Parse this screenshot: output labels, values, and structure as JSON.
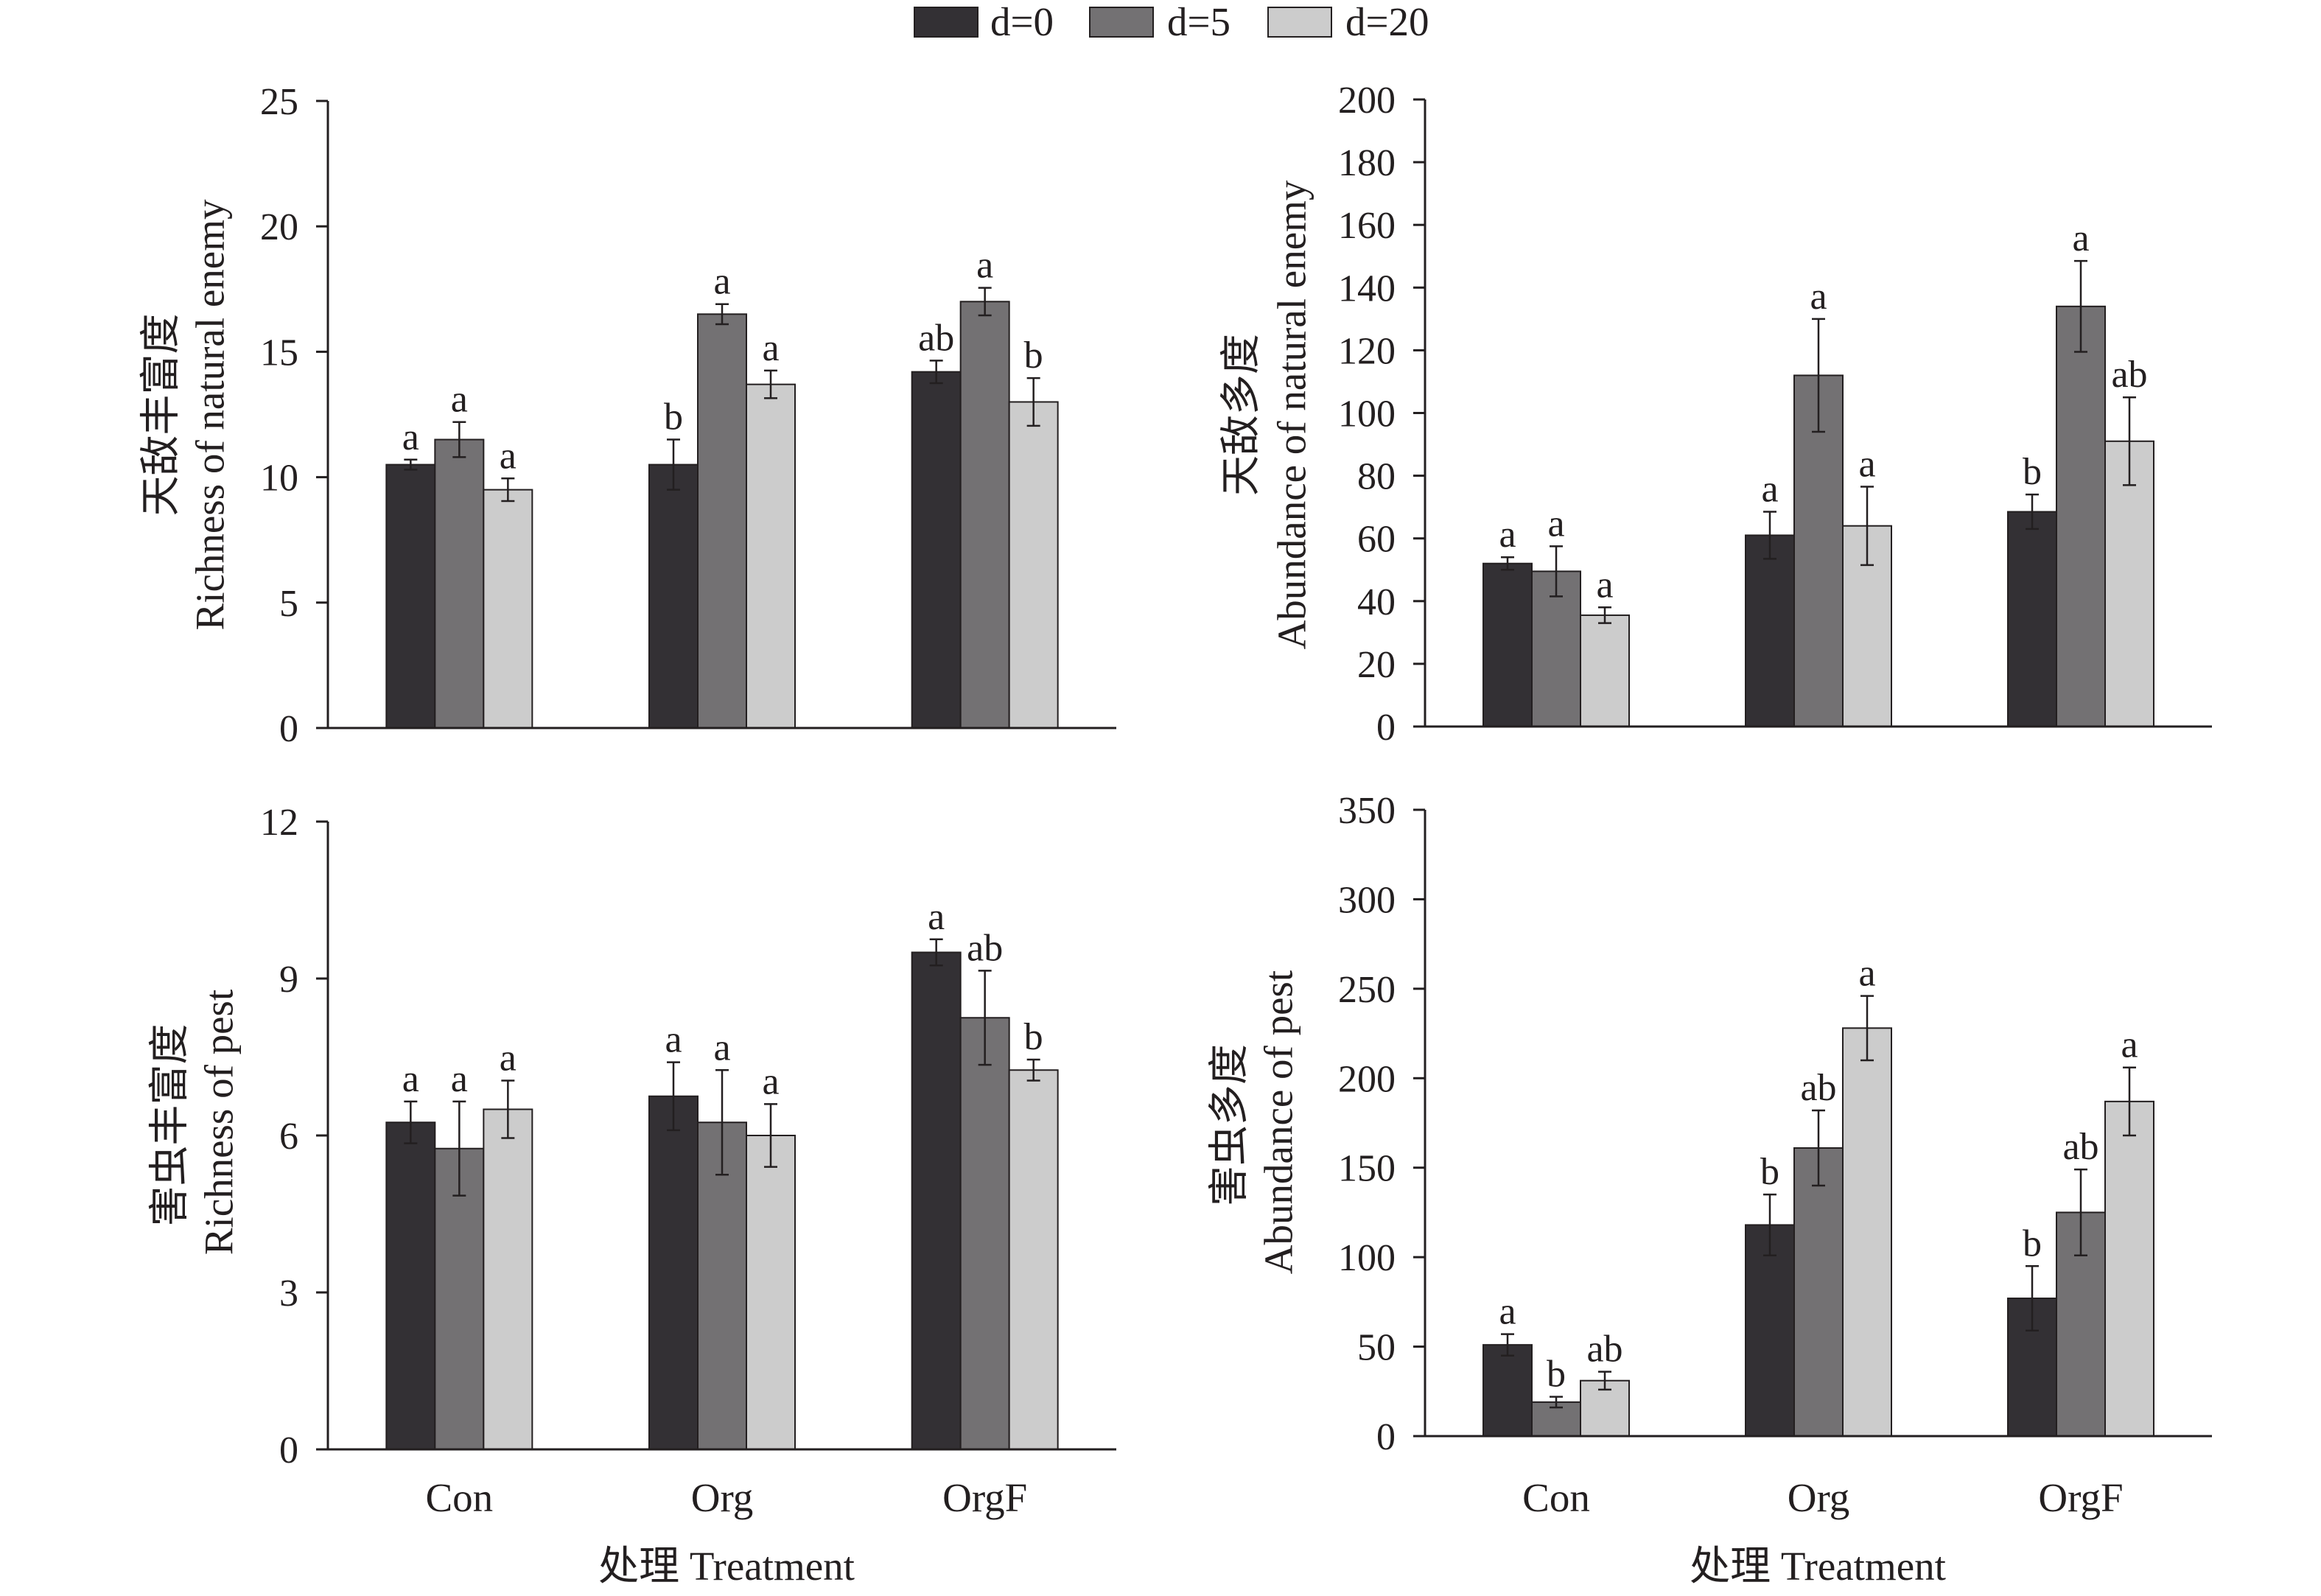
{
  "legend_position": "top",
  "legend": [
    {
      "label": "d=0",
      "color": "#333034"
    },
    {
      "label": "d=5",
      "color": "#737173"
    },
    {
      "label": "d=20",
      "color": "#cccccc"
    }
  ],
  "chart_data": [
    {
      "type": "bar",
      "grid": false,
      "categories": [
        "Con",
        "Org",
        "OrgF"
      ],
      "ylabel": [
        "天敌丰富度",
        "Richness of natural enemy"
      ],
      "ylim": [
        0,
        25
      ],
      "yticks": [
        0,
        5,
        10,
        15,
        20,
        25
      ],
      "series": [
        {
          "name": "d=0",
          "values": [
            10.5,
            10.5,
            14.2
          ],
          "errors": [
            0.2,
            1.0,
            0.45
          ],
          "letters": [
            "a",
            "b",
            "ab"
          ]
        },
        {
          "name": "d=5",
          "values": [
            11.5,
            16.5,
            17.0
          ],
          "errors": [
            0.7,
            0.4,
            0.55
          ],
          "letters": [
            "a",
            "a",
            "a"
          ]
        },
        {
          "name": "d=20",
          "values": [
            9.5,
            13.7,
            13.0
          ],
          "errors": [
            0.45,
            0.55,
            0.95
          ],
          "letters": [
            "a",
            "a",
            "b"
          ]
        }
      ]
    },
    {
      "type": "bar",
      "grid": false,
      "categories": [
        "Con",
        "Org",
        "OrgF"
      ],
      "ylabel": [
        "天敌多度",
        "Abundance of natural enemy"
      ],
      "ylim": [
        0,
        200
      ],
      "yticks": [
        0,
        20,
        40,
        60,
        80,
        100,
        120,
        140,
        160,
        180,
        200
      ],
      "series": [
        {
          "name": "d=0",
          "values": [
            52,
            61,
            68.5
          ],
          "errors": [
            2,
            7.5,
            5.5
          ],
          "letters": [
            "a",
            "a",
            "b"
          ]
        },
        {
          "name": "d=5",
          "values": [
            49.5,
            112,
            134
          ],
          "errors": [
            8,
            18,
            14.5
          ],
          "letters": [
            "a",
            "a",
            "a"
          ]
        },
        {
          "name": "d=20",
          "values": [
            35.5,
            64,
            91
          ],
          "errors": [
            2.5,
            12.5,
            14
          ],
          "letters": [
            "a",
            "a",
            "ab"
          ]
        }
      ]
    },
    {
      "type": "bar",
      "grid": false,
      "categories": [
        "Con",
        "Org",
        "OrgF"
      ],
      "xlabel": "处理 Treatment",
      "ylabel": [
        "害虫丰富度",
        "Richness of pest"
      ],
      "ylim": [
        0,
        12
      ],
      "yticks": [
        0,
        3,
        6,
        9,
        12
      ],
      "series": [
        {
          "name": "d=0",
          "values": [
            6.25,
            6.75,
            9.5
          ],
          "errors": [
            0.4,
            0.65,
            0.25
          ],
          "letters": [
            "a",
            "a",
            "a"
          ]
        },
        {
          "name": "d=5",
          "values": [
            5.75,
            6.25,
            8.25
          ],
          "errors": [
            0.9,
            1.0,
            0.9
          ],
          "letters": [
            "a",
            "a",
            "ab"
          ]
        },
        {
          "name": "d=20",
          "values": [
            6.5,
            6.0,
            7.25
          ],
          "errors": [
            0.55,
            0.6,
            0.2
          ],
          "letters": [
            "a",
            "a",
            "b"
          ]
        }
      ]
    },
    {
      "type": "bar",
      "grid": false,
      "categories": [
        "Con",
        "Org",
        "OrgF"
      ],
      "xlabel": "处理 Treatment",
      "ylabel": [
        "害虫多度",
        "Abundance of pest"
      ],
      "ylim": [
        0,
        350
      ],
      "yticks": [
        0,
        50,
        100,
        150,
        200,
        250,
        300,
        350
      ],
      "series": [
        {
          "name": "d=0",
          "values": [
            51,
            118,
            77
          ],
          "errors": [
            6,
            17,
            18
          ],
          "letters": [
            "a",
            "b",
            "b"
          ]
        },
        {
          "name": "d=5",
          "values": [
            19,
            161,
            125
          ],
          "errors": [
            3,
            21,
            24
          ],
          "letters": [
            "b",
            "ab",
            "ab"
          ]
        },
        {
          "name": "d=20",
          "values": [
            31,
            228,
            187
          ],
          "errors": [
            5,
            18,
            19
          ],
          "letters": [
            "ab",
            "a",
            "a"
          ]
        }
      ]
    }
  ]
}
